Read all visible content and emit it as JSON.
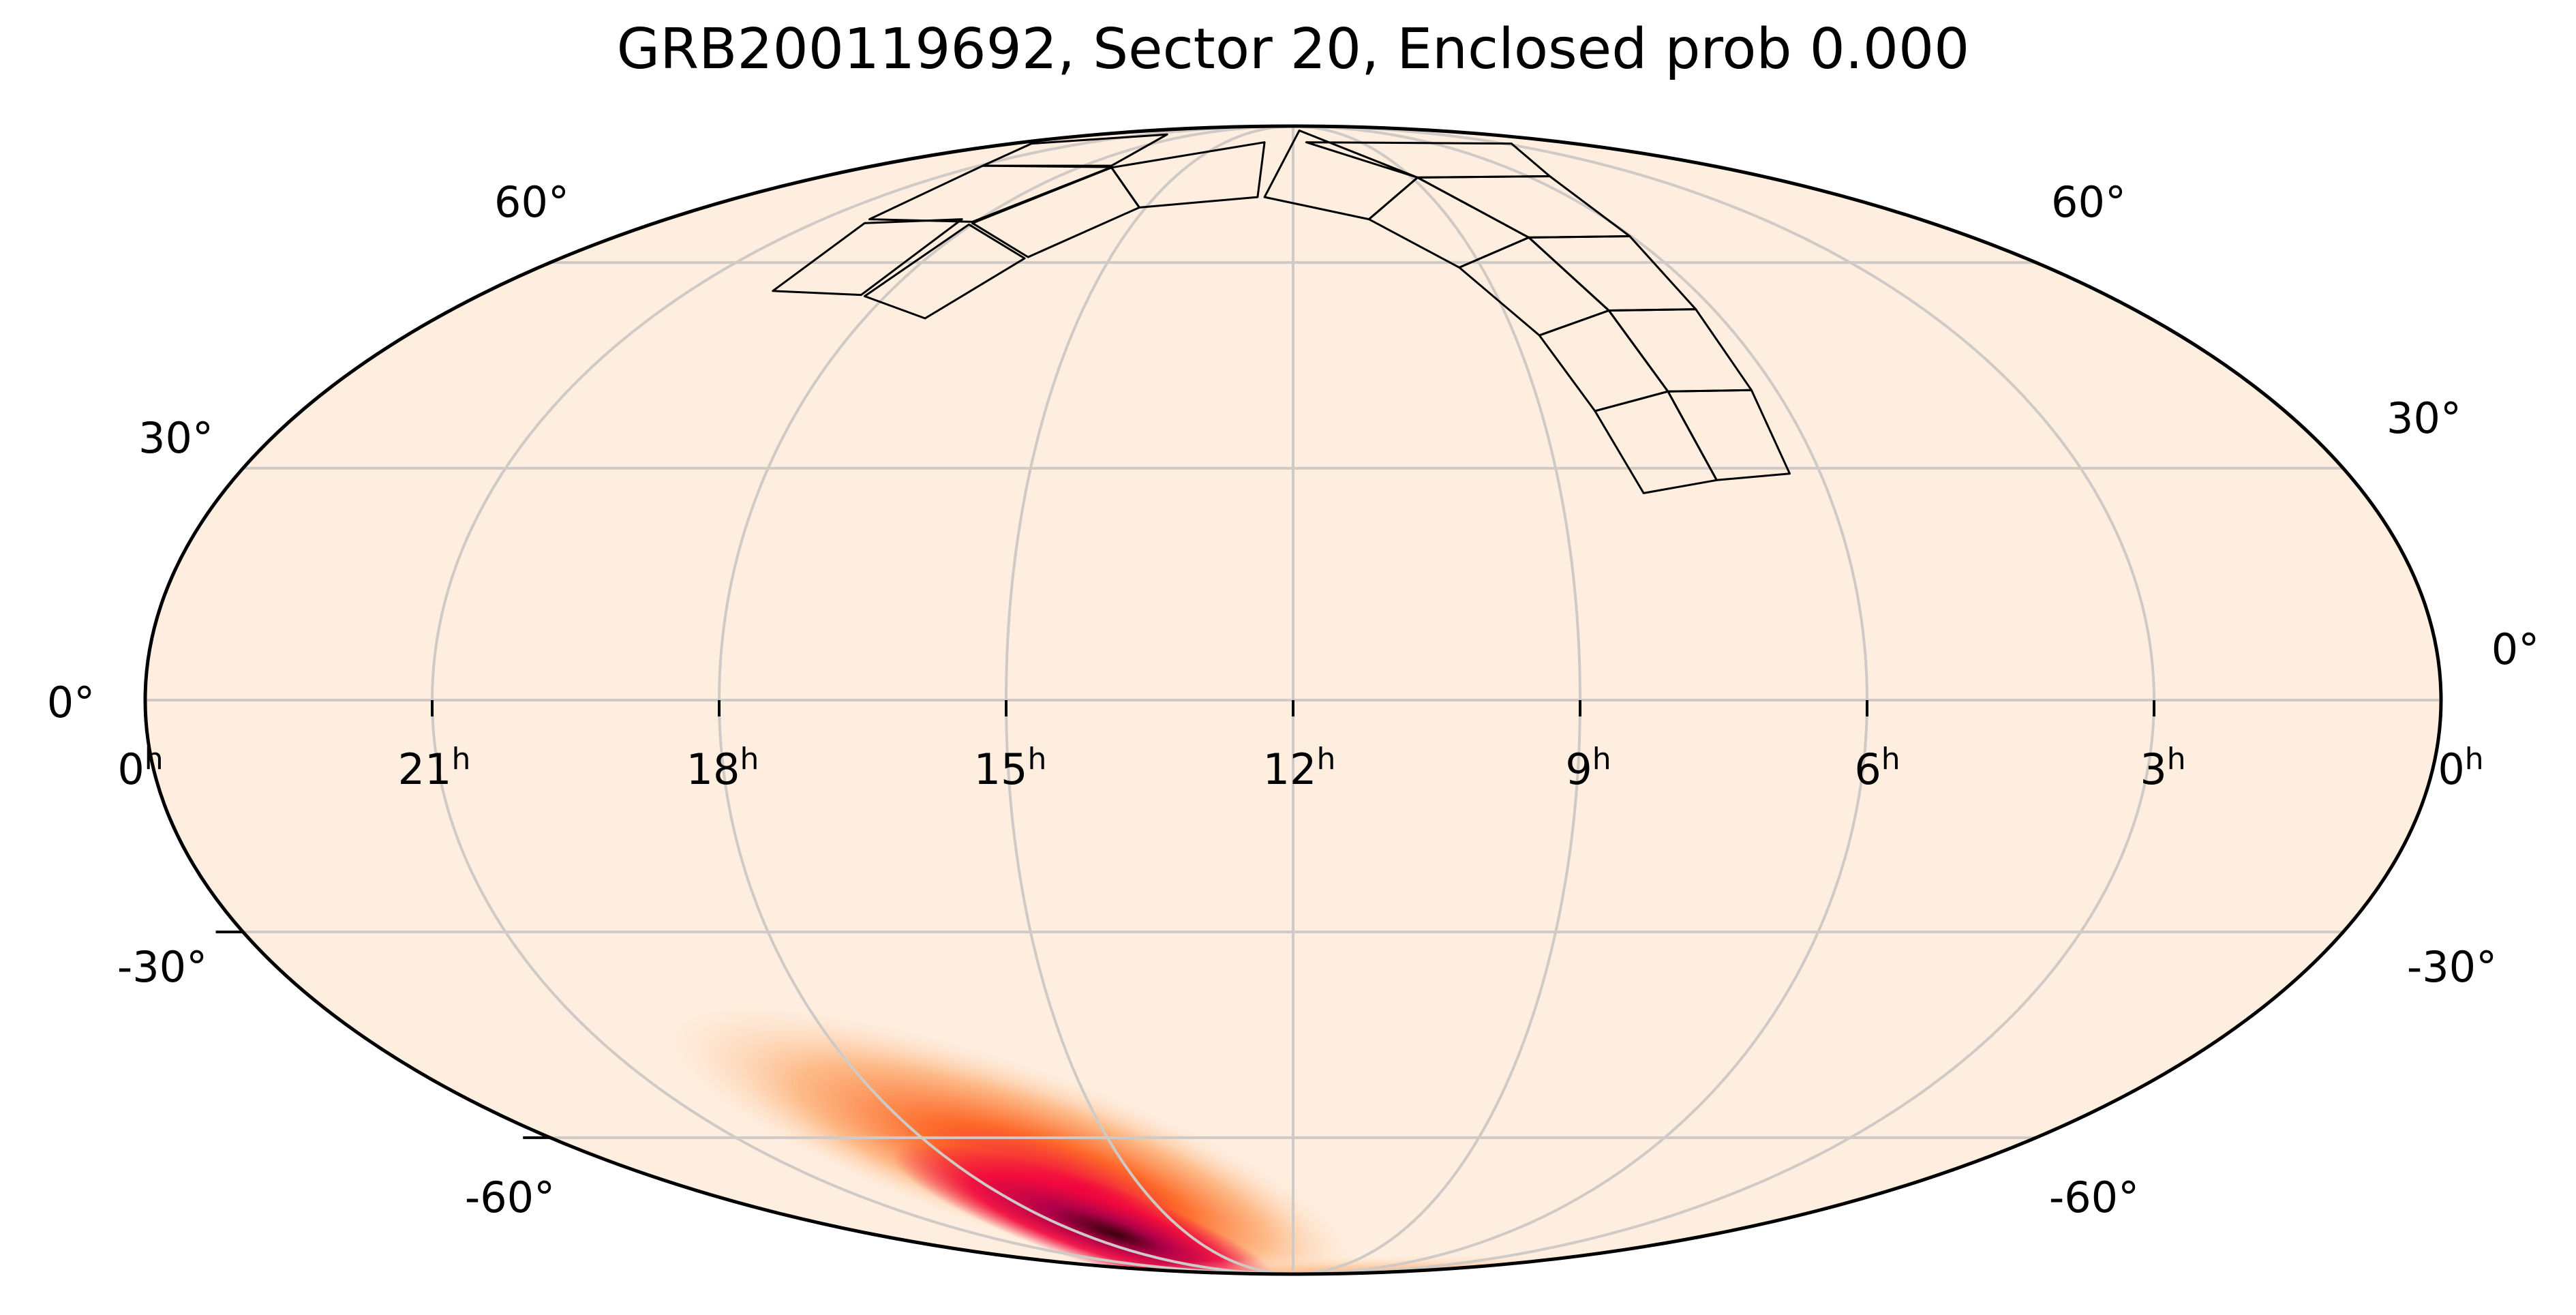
{
  "chart_data": {
    "type": "heatmap",
    "title": "GRB200119692, Sector 20, Enclosed prob 0.000",
    "projection": "mollweide",
    "grid": true,
    "background_color": "#feeedf",
    "colormap": [
      "#feeedf",
      "#fdb27a",
      "#fd6a2a",
      "#f0053f",
      "#b0004a",
      "#3a000c"
    ],
    "probability_peak": {
      "ra_hours": 17.1,
      "dec_deg": -75
    },
    "ra_ticks": [
      {
        "label": "0",
        "unit": "h",
        "ra_hours": 24
      },
      {
        "label": "21",
        "unit": "h",
        "ra_hours": 21
      },
      {
        "label": "18",
        "unit": "h",
        "ra_hours": 18
      },
      {
        "label": "15",
        "unit": "h",
        "ra_hours": 15
      },
      {
        "label": "12",
        "unit": "h",
        "ra_hours": 12
      },
      {
        "label": "9",
        "unit": "h",
        "ra_hours": 9
      },
      {
        "label": "6",
        "unit": "h",
        "ra_hours": 6
      },
      {
        "label": "3",
        "unit": "h",
        "ra_hours": 3
      },
      {
        "label": "0",
        "unit": "h",
        "ra_hours": 0
      }
    ],
    "dec_ticks_left": [
      "60°",
      "30°",
      "0°",
      "-30°",
      "-60°"
    ],
    "dec_ticks_right": [
      "60°",
      "30°",
      "0°",
      "-30°",
      "-60°"
    ],
    "dec_gridlines": [
      -60,
      -30,
      0,
      30,
      60
    ],
    "ra_gridlines_hours": [
      3,
      6,
      9,
      12,
      15,
      18,
      21
    ]
  }
}
